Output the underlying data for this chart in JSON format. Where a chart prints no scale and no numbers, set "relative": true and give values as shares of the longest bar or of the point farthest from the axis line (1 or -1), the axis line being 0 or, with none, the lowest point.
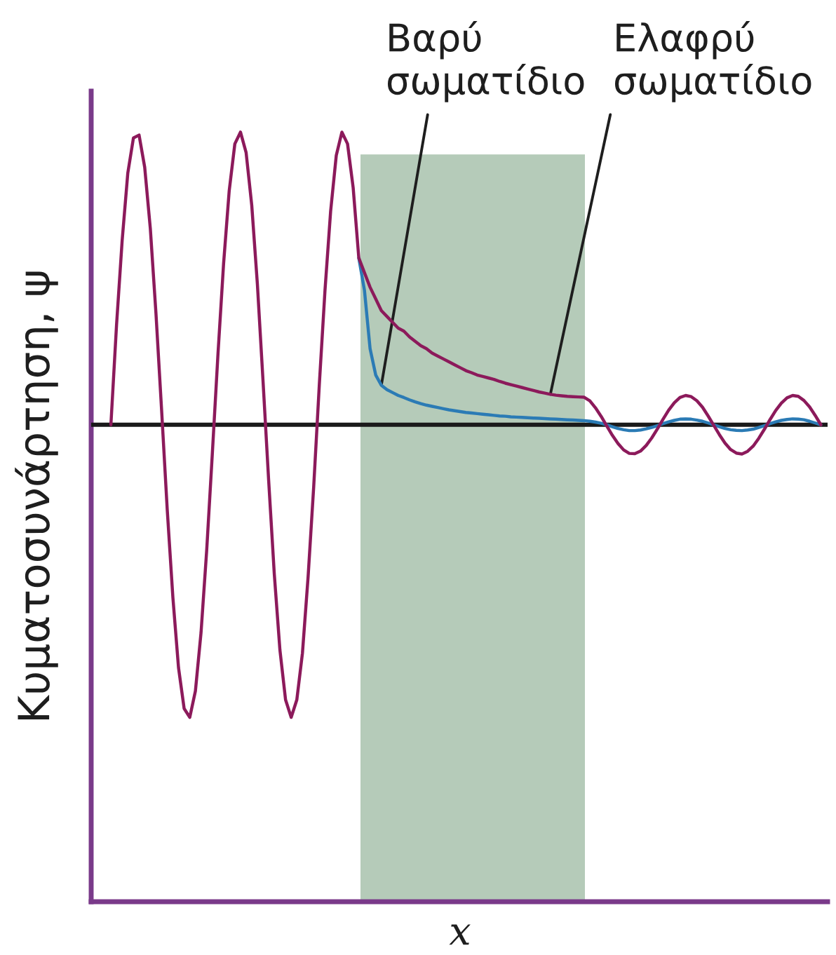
{
  "chart_data": {
    "type": "line",
    "relative": true,
    "ylabel": "Κυματοσυνάρτηση, ψ",
    "annotations": [
      "x"
    ],
    "line_style": "solid",
    "categories": [
      null,
      null,
      null,
      null,
      null,
      null,
      null,
      null,
      null,
      null,
      null,
      null,
      null,
      null,
      null,
      null,
      null,
      null,
      null,
      null,
      null,
      null,
      null,
      null,
      null,
      null,
      null,
      null,
      null,
      null,
      null,
      null,
      null,
      null,
      null,
      null,
      null,
      null,
      null,
      null,
      null,
      null,
      null,
      null,
      null,
      null,
      null,
      null,
      null,
      null,
      null,
      null,
      null,
      null,
      null,
      null,
      null,
      null,
      null,
      null,
      null,
      null,
      null,
      null,
      null,
      null,
      null,
      null,
      null,
      null,
      null,
      null,
      null,
      null,
      null,
      null,
      null,
      null,
      null,
      null,
      null,
      null,
      null,
      null,
      null,
      null,
      null,
      null,
      null,
      null,
      null,
      null,
      null,
      null,
      null,
      null,
      null,
      null,
      null,
      null,
      null,
      null,
      null,
      null,
      null,
      null,
      null,
      null,
      null,
      null,
      null,
      null,
      null,
      null,
      null,
      null,
      null,
      null,
      null,
      null,
      null,
      null,
      null,
      null,
      null,
      null,
      null
    ],
    "series": [
      {
        "name": "Βαρύ σωματίδιο",
        "color": "#2b7bb5",
        "values": [
          null,
          null,
          null,
          null,
          null,
          null,
          null,
          null,
          null,
          null,
          null,
          null,
          null,
          null,
          null,
          null,
          null,
          null,
          null,
          null,
          null,
          null,
          null,
          null,
          null,
          null,
          null,
          null,
          null,
          null,
          null,
          null,
          null,
          null,
          null,
          null,
          null,
          null,
          null,
          null,
          null,
          null,
          null,
          null,
          0.57,
          0.46,
          0.26,
          0.17,
          0.135,
          0.12,
          0.11,
          0.1,
          0.093,
          0.085,
          0.078,
          0.072,
          0.067,
          0.063,
          0.059,
          0.055,
          0.051,
          0.048,
          0.045,
          0.042,
          0.04,
          0.038,
          0.036,
          0.034,
          0.032,
          0.03,
          0.029,
          0.027,
          0.026,
          0.025,
          0.024,
          0.023,
          0.022,
          0.021,
          0.02,
          0.019,
          0.018,
          0.017,
          0.016,
          0.015,
          0.014,
          0.012,
          0.009,
          0.005,
          0.0,
          -0.007,
          -0.013,
          -0.017,
          -0.02,
          -0.02,
          -0.018,
          -0.014,
          -0.009,
          -0.003,
          0.004,
          0.01,
          0.015,
          0.019,
          0.02,
          0.019,
          0.016,
          0.012,
          0.006,
          0.0,
          -0.007,
          -0.013,
          -0.017,
          -0.019,
          -0.02,
          -0.018,
          -0.015,
          -0.009,
          -0.003,
          0.004,
          0.01,
          0.015,
          0.018,
          0.02,
          0.019,
          0.017,
          0.012,
          0.006,
          0.0
        ]
      },
      {
        "name": "Ελαφρύ σωματίδιο",
        "color": "#8c1a5b",
        "values": [
          0,
          0.34,
          0.63,
          0.86,
          0.98,
          0.99,
          0.88,
          0.67,
          0.38,
          0.05,
          -0.29,
          -0.59,
          -0.83,
          -0.97,
          -1.0,
          -0.91,
          -0.71,
          -0.43,
          -0.1,
          0.24,
          0.55,
          0.8,
          0.96,
          1.0,
          0.93,
          0.75,
          0.48,
          0.15,
          -0.19,
          -0.51,
          -0.77,
          -0.94,
          -1.0,
          -0.94,
          -0.78,
          -0.52,
          -0.21,
          0.14,
          0.46,
          0.73,
          0.92,
          1.0,
          0.96,
          0.81,
          0.57,
          0.52,
          0.47,
          0.43,
          0.39,
          0.37,
          0.35,
          0.33,
          0.32,
          0.3,
          0.285,
          0.27,
          0.26,
          0.245,
          0.235,
          0.225,
          0.215,
          0.205,
          0.195,
          0.185,
          0.178,
          0.17,
          0.165,
          0.16,
          0.155,
          0.148,
          0.142,
          0.137,
          0.132,
          0.127,
          0.122,
          0.117,
          0.112,
          0.108,
          0.104,
          0.101,
          0.099,
          0.097,
          0.096,
          0.095,
          0.094,
          0.082,
          0.058,
          0.029,
          -0.004,
          -0.036,
          -0.064,
          -0.086,
          -0.098,
          -0.099,
          -0.09,
          -0.071,
          -0.045,
          -0.014,
          0.019,
          0.05,
          0.075,
          0.093,
          0.1,
          0.096,
          0.082,
          0.06,
          0.03,
          -0.002,
          -0.034,
          -0.063,
          -0.085,
          -0.097,
          -0.1,
          -0.091,
          -0.073,
          -0.046,
          -0.015,
          0.018,
          0.049,
          0.074,
          0.092,
          0.1,
          0.097,
          0.083,
          0.061,
          0.032,
          0.0
        ]
      }
    ],
    "ref_lines": [
      {
        "axis": "y",
        "value": 0,
        "color": "#1a1a1a"
      }
    ]
  }
}
